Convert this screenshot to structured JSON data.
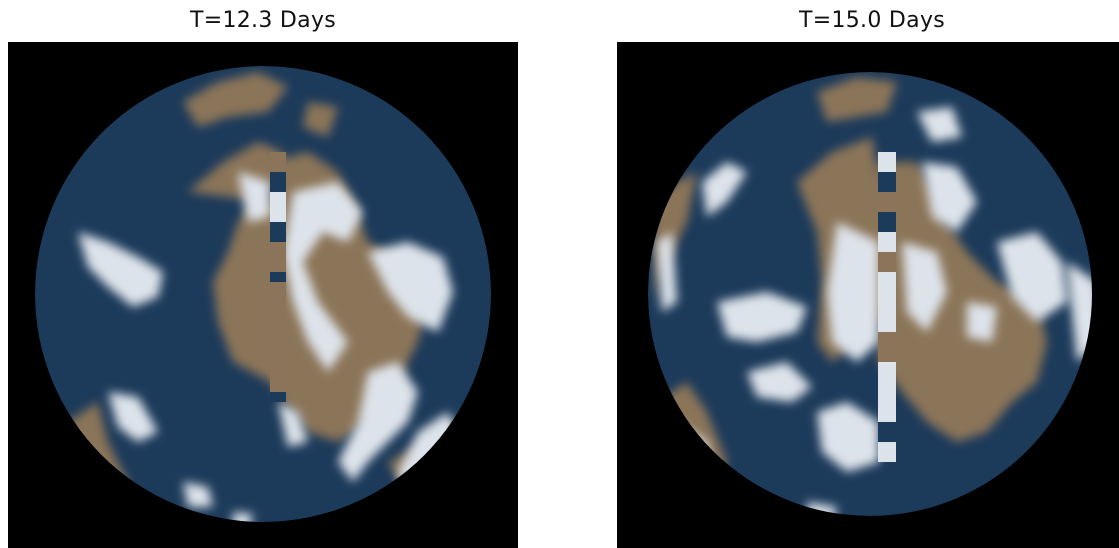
{
  "panels": [
    {
      "title": "T=12.3 Days"
    },
    {
      "title": "T=15.0 Days"
    }
  ],
  "colors": {
    "background": "#000000",
    "ocean": "#1c3a5a",
    "land": "#8b7459",
    "ice": "#dde3ea"
  }
}
